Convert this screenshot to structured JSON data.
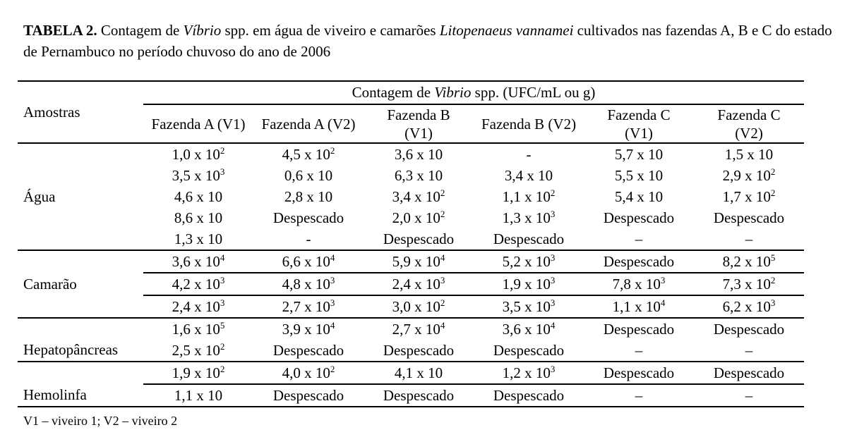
{
  "colors": {
    "text": "#000000",
    "background": "#ffffff",
    "rules": "#000000"
  },
  "title": {
    "label": "TABELA 2.",
    "seg1": " Contagem de ",
    "italic1": "Víbrio",
    "seg2": " spp. em água de viveiro e camarões ",
    "italic2": "Litopenaeus vannamei",
    "seg3": " cultivados nas fazendas A, B e C do estado de Pernambuco no período chuvoso do ano de 2006"
  },
  "table": {
    "corner": "Amostras",
    "group_header": {
      "prefix": "Contagem de ",
      "italic": "Vibrio",
      "suffix": " spp. (UFC/mL ou g)"
    },
    "columns": [
      [
        "Fazenda A (V1)"
      ],
      [
        "Fazenda A (V2)"
      ],
      [
        "Fazenda B",
        "(V1)"
      ],
      [
        "Fazenda B (V2)"
      ],
      [
        "Fazenda C",
        "(V1)"
      ],
      [
        "Fazenda C",
        "(V2)"
      ]
    ],
    "sections": [
      {
        "label": "Água",
        "label_align": "middle",
        "dividers": [],
        "rows": [
          [
            "1,0 x 10^2",
            "4,5 x 10^2",
            "3,6 x 10",
            "-",
            "5,7 x 10",
            "1,5 x 10"
          ],
          [
            "3,5 x 10^3",
            "0,6 x 10",
            "6,3 x 10",
            "3,4 x 10",
            "5,5 x 10",
            "2,9 x 10^2"
          ],
          [
            "4,6 x 10",
            "2,8 x 10",
            "3,4 x 10^2",
            "1,1 x 10^2",
            "5,4 x 10",
            "1,7 x 10^2"
          ],
          [
            "8,6 x 10",
            "Despescado",
            "2,0 x 10^2",
            "1,3 x 10^3",
            "Despescado",
            "Despescado"
          ],
          [
            "1,3 x 10",
            "-",
            "Despescado",
            "Despescado",
            "–",
            "–"
          ]
        ]
      },
      {
        "label": "Camarão",
        "label_align": "middle",
        "dividers": [
          1,
          2
        ],
        "rows": [
          [
            "3,6 x 10^4",
            "6,6 x 10^4",
            "5,9 x 10^4",
            "5,2 x 10^3",
            "Despescado",
            "8,2 x 10^5"
          ],
          [
            "4,2 x 10^3",
            "4,8 x 10^3",
            "2,4 x 10^3",
            "1,9 x 10^3",
            "7,8 x 10^3",
            "7,3 x 10^2"
          ],
          [
            "2,4 x 10^3",
            "2,7 x 10^3",
            "3,0 x 10^2",
            "3,5 x 10^3",
            "1,1 x 10^4",
            "6,2 x 10^3"
          ]
        ]
      },
      {
        "label": "Hepatopâncreas",
        "label_align": "bottom",
        "dividers": [],
        "rows": [
          [
            "1,6 x 10^5",
            "3,9 x 10^4",
            "2,7 x 10^4",
            "3,6 x 10^4",
            "Despescado",
            "Despescado"
          ],
          [
            "2,5 x 10^2",
            "Despescado",
            "Despescado",
            "Despescado",
            "–",
            "–"
          ]
        ]
      },
      {
        "label": "Hemolinfa",
        "label_align": "bottom",
        "dividers": [
          1
        ],
        "rows": [
          [
            "1,9 x 10^2",
            "4,0 x 10^2",
            "4,1 x 10",
            "1,2 x 10^3",
            "Despescado",
            "Despescado"
          ],
          [
            "1,1 x 10",
            "Despescado",
            "Despescado",
            "Despescado",
            "–",
            "–"
          ]
        ]
      }
    ]
  },
  "footnote": "V1 – viveiro 1; V2 – viveiro 2"
}
